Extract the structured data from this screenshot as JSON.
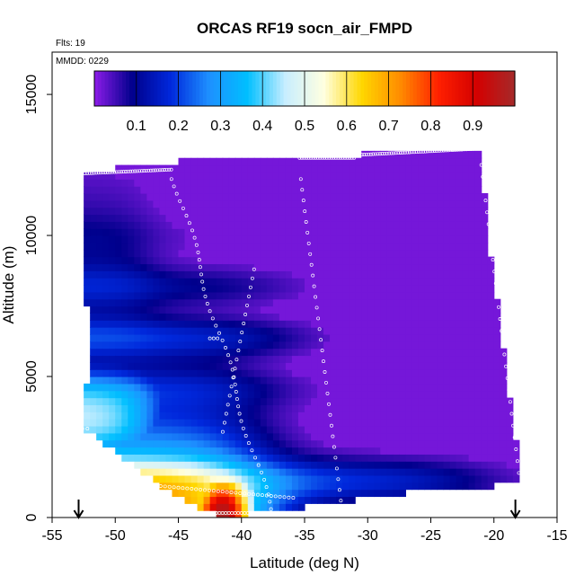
{
  "chart_data": {
    "type": "heatmap",
    "title": "ORCAS RF19 socn_air_FMPD",
    "annotations": [
      "Flts: 19",
      "MMDD: 0229"
    ],
    "xlabel": "Latitude (deg N)",
    "ylabel": "Altitude (m)",
    "xlim": [
      -55,
      -15
    ],
    "ylim": [
      0,
      16500
    ],
    "x_ticks": [
      -55,
      -50,
      -45,
      -40,
      -35,
      -30,
      -25,
      -20,
      -15
    ],
    "y_ticks": [
      0,
      5000,
      10000,
      15000
    ],
    "colorbar": {
      "range": [
        0,
        1
      ],
      "ticks": [
        0.1,
        0.2,
        0.3,
        0.4,
        0.5,
        0.6,
        0.7,
        0.8,
        0.9
      ],
      "colors": [
        "#8c1ce8",
        "#00008c",
        "#0028dc",
        "#1e90ff",
        "#00bfff",
        "#c8eeff",
        "#ffffe0",
        "#ffd700",
        "#ff8c00",
        "#ff2000",
        "#d40000",
        "#a52a2a"
      ]
    },
    "domain": {
      "top_edge": [
        [
          -52.7,
          12300
        ],
        [
          -45.2,
          12500
        ],
        [
          -45,
          12650
        ],
        [
          -30.4,
          12750
        ],
        [
          -30.4,
          13000
        ],
        [
          -21,
          13100
        ]
      ],
      "bottom_edge": [
        [
          -52.5,
          3150
        ],
        [
          -49.5,
          2200
        ],
        [
          -46.5,
          1200
        ],
        [
          -44,
          450
        ],
        [
          -42,
          100
        ],
        [
          -37.5,
          150
        ],
        [
          -36.5,
          300
        ],
        [
          -33,
          500
        ],
        [
          -30,
          700
        ],
        [
          -25,
          1000
        ],
        [
          -20.5,
          1100
        ],
        [
          -17.8,
          1200
        ]
      ],
      "left_edge": [
        [
          -52.7,
          12300
        ],
        [
          -52.5,
          8500
        ],
        [
          -52,
          6500
        ],
        [
          -52.5,
          3150
        ]
      ],
      "right_edge": [
        [
          -21,
          13100
        ],
        [
          -20.5,
          10000
        ],
        [
          -19.5,
          7000
        ],
        [
          -19,
          5000
        ],
        [
          -18.3,
          3000
        ],
        [
          -17.8,
          1200
        ]
      ]
    },
    "field_description": {
      "background": "purple near 0 (ocean fraction ~0) over most of the domain north of -40",
      "trend": "fraction increases southward and toward the surface, reaching ~0.9-1.0 near -42 deg N below 1500 m"
    },
    "flight_track_marker_color": "#ffffff",
    "markers": [
      {
        "label": "arrow",
        "x": -52.9,
        "y": 0
      },
      {
        "label": "arrow",
        "x": -18.3,
        "y": 0
      }
    ]
  }
}
